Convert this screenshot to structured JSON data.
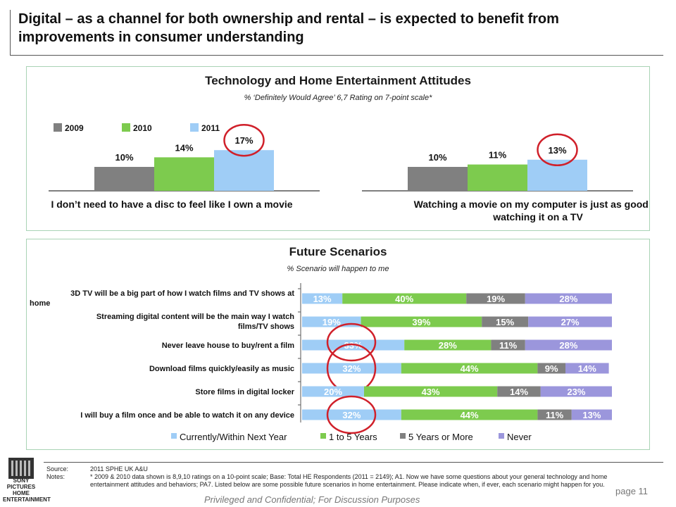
{
  "title": "Digital – as a channel for both ownership and rental – is expected to benefit from improvements in consumer understanding",
  "top_panel": {
    "title": "Technology and Home Entertainment Attitudes",
    "subtitle": "% ‘Definitely  Would Agree’ 6,7 Rating on 7-point scale*"
  },
  "bottom_panel": {
    "title": "Future Scenarios",
    "subtitle": "%  Scenario will happen to me"
  },
  "chart_data": [
    {
      "type": "bar",
      "title": "Technology and Home Entertainment Attitudes",
      "series": [
        {
          "name": "2009",
          "color": "#808080",
          "values": [
            10,
            10
          ]
        },
        {
          "name": "2010",
          "color": "#7dcb4e",
          "values": [
            14,
            11
          ]
        },
        {
          "name": "2011",
          "color": "#9fcdf6",
          "values": [
            17,
            13
          ]
        }
      ],
      "categories": [
        "I don’t need to have a disc to feel like I own a movie",
        "Watching a movie on my computer is just as good as watching it on a TV"
      ],
      "data_labels": [
        [
          "10%",
          "14%",
          "17%"
        ],
        [
          "10%",
          "11%",
          "13%"
        ]
      ],
      "highlighted": [
        "2011"
      ],
      "legend_position": "top-left"
    },
    {
      "type": "bar",
      "orientation": "horizontal",
      "stacked": true,
      "title": "Future Scenarios",
      "categories": [
        "3D TV will be a big part of how I watch films and TV shows at home",
        "Streaming digital content will be the main way I watch films/TV shows",
        "Never leave house to buy/rent a film",
        "Download films quickly/easily as music",
        "Store films in digital locker",
        "I will buy a film once and be able to watch it on any device"
      ],
      "series": [
        {
          "name": "Currently/Within Next Year",
          "color": "#9fcdf6",
          "values": [
            13,
            19,
            33,
            32,
            20,
            32
          ]
        },
        {
          "name": "1 to 5 Years",
          "color": "#7dcb4e",
          "values": [
            40,
            39,
            28,
            44,
            43,
            44
          ]
        },
        {
          "name": "5 Years or More",
          "color": "#808080",
          "values": [
            19,
            15,
            11,
            9,
            14,
            11
          ]
        },
        {
          "name": "Never",
          "color": "#9b96dc",
          "values": [
            28,
            27,
            28,
            14,
            23,
            13
          ]
        }
      ],
      "highlighted_rows": [
        2,
        3,
        5
      ],
      "legend_position": "bottom"
    }
  ],
  "footer": {
    "source_label": "Source:",
    "source_text": "2011 SPHE UK A&U",
    "notes_label": "Notes:",
    "notes_text": "* 2009 & 2010 data shown is 8,9,10 ratings on a 10-point scale; Base: Total HE Respondents (2011 = 2149); A1. Now we have some questions about your general technology and home entertainment attitudes and behaviors; PA7. Listed below are some possible future scenarios in home entertainment. Please indicate when, if ever, each scenario might happen for you.",
    "privileged": "Privileged and Confidential; For Discussion Purposes",
    "page": "page 11"
  },
  "logo": {
    "text": "SONY PICTURES HOME ENTERTAINMENT"
  }
}
